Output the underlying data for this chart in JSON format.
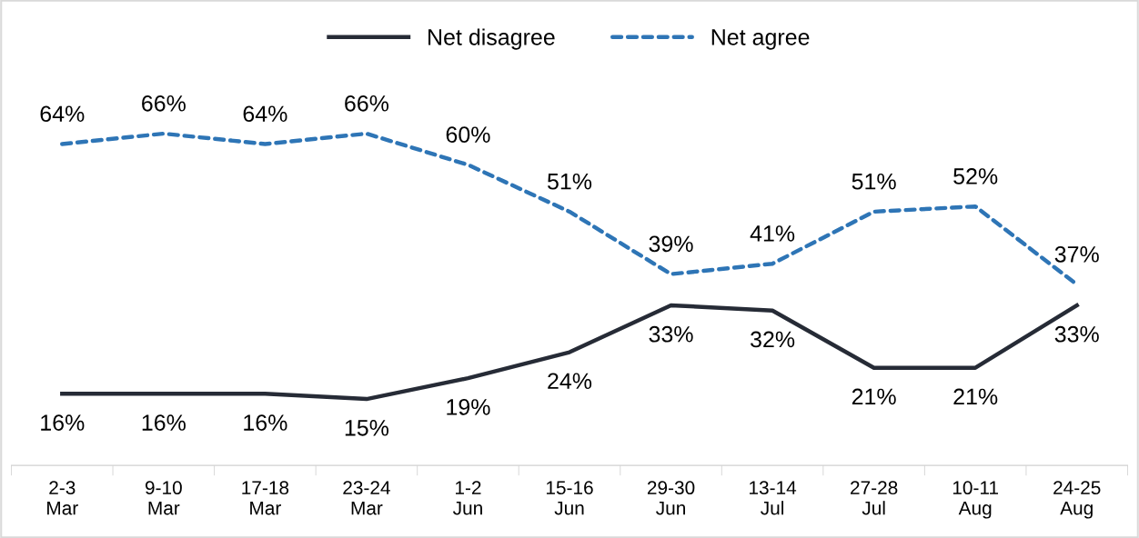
{
  "chart_data": {
    "type": "line",
    "categories": [
      "2-3\nMar",
      "9-10\nMar",
      "17-18\nMar",
      "23-24\nMar",
      "1-2\nJun",
      "15-16\nJun",
      "29-30\nJun",
      "13-14\nJul",
      "27-28\nJul",
      "10-11\nAug",
      "24-25\nAug"
    ],
    "series": [
      {
        "name": "Net disagree",
        "color": "#262b36",
        "line_style": "solid",
        "values": [
          16,
          16,
          16,
          15,
          19,
          24,
          33,
          32,
          21,
          21,
          33
        ],
        "value_labels": [
          "16%",
          "16%",
          "16%",
          "15%",
          "19%",
          "24%",
          "33%",
          "32%",
          "21%",
          "21%",
          "33%"
        ]
      },
      {
        "name": "Net agree",
        "color": "#2e75b6",
        "line_style": "dashed",
        "values": [
          64,
          66,
          64,
          66,
          60,
          51,
          39,
          41,
          51,
          52,
          37
        ],
        "value_labels": [
          "64%",
          "66%",
          "64%",
          "66%",
          "60%",
          "51%",
          "39%",
          "41%",
          "51%",
          "52%",
          "37%"
        ]
      }
    ],
    "legend": "top",
    "grid": false,
    "marker": "none"
  }
}
